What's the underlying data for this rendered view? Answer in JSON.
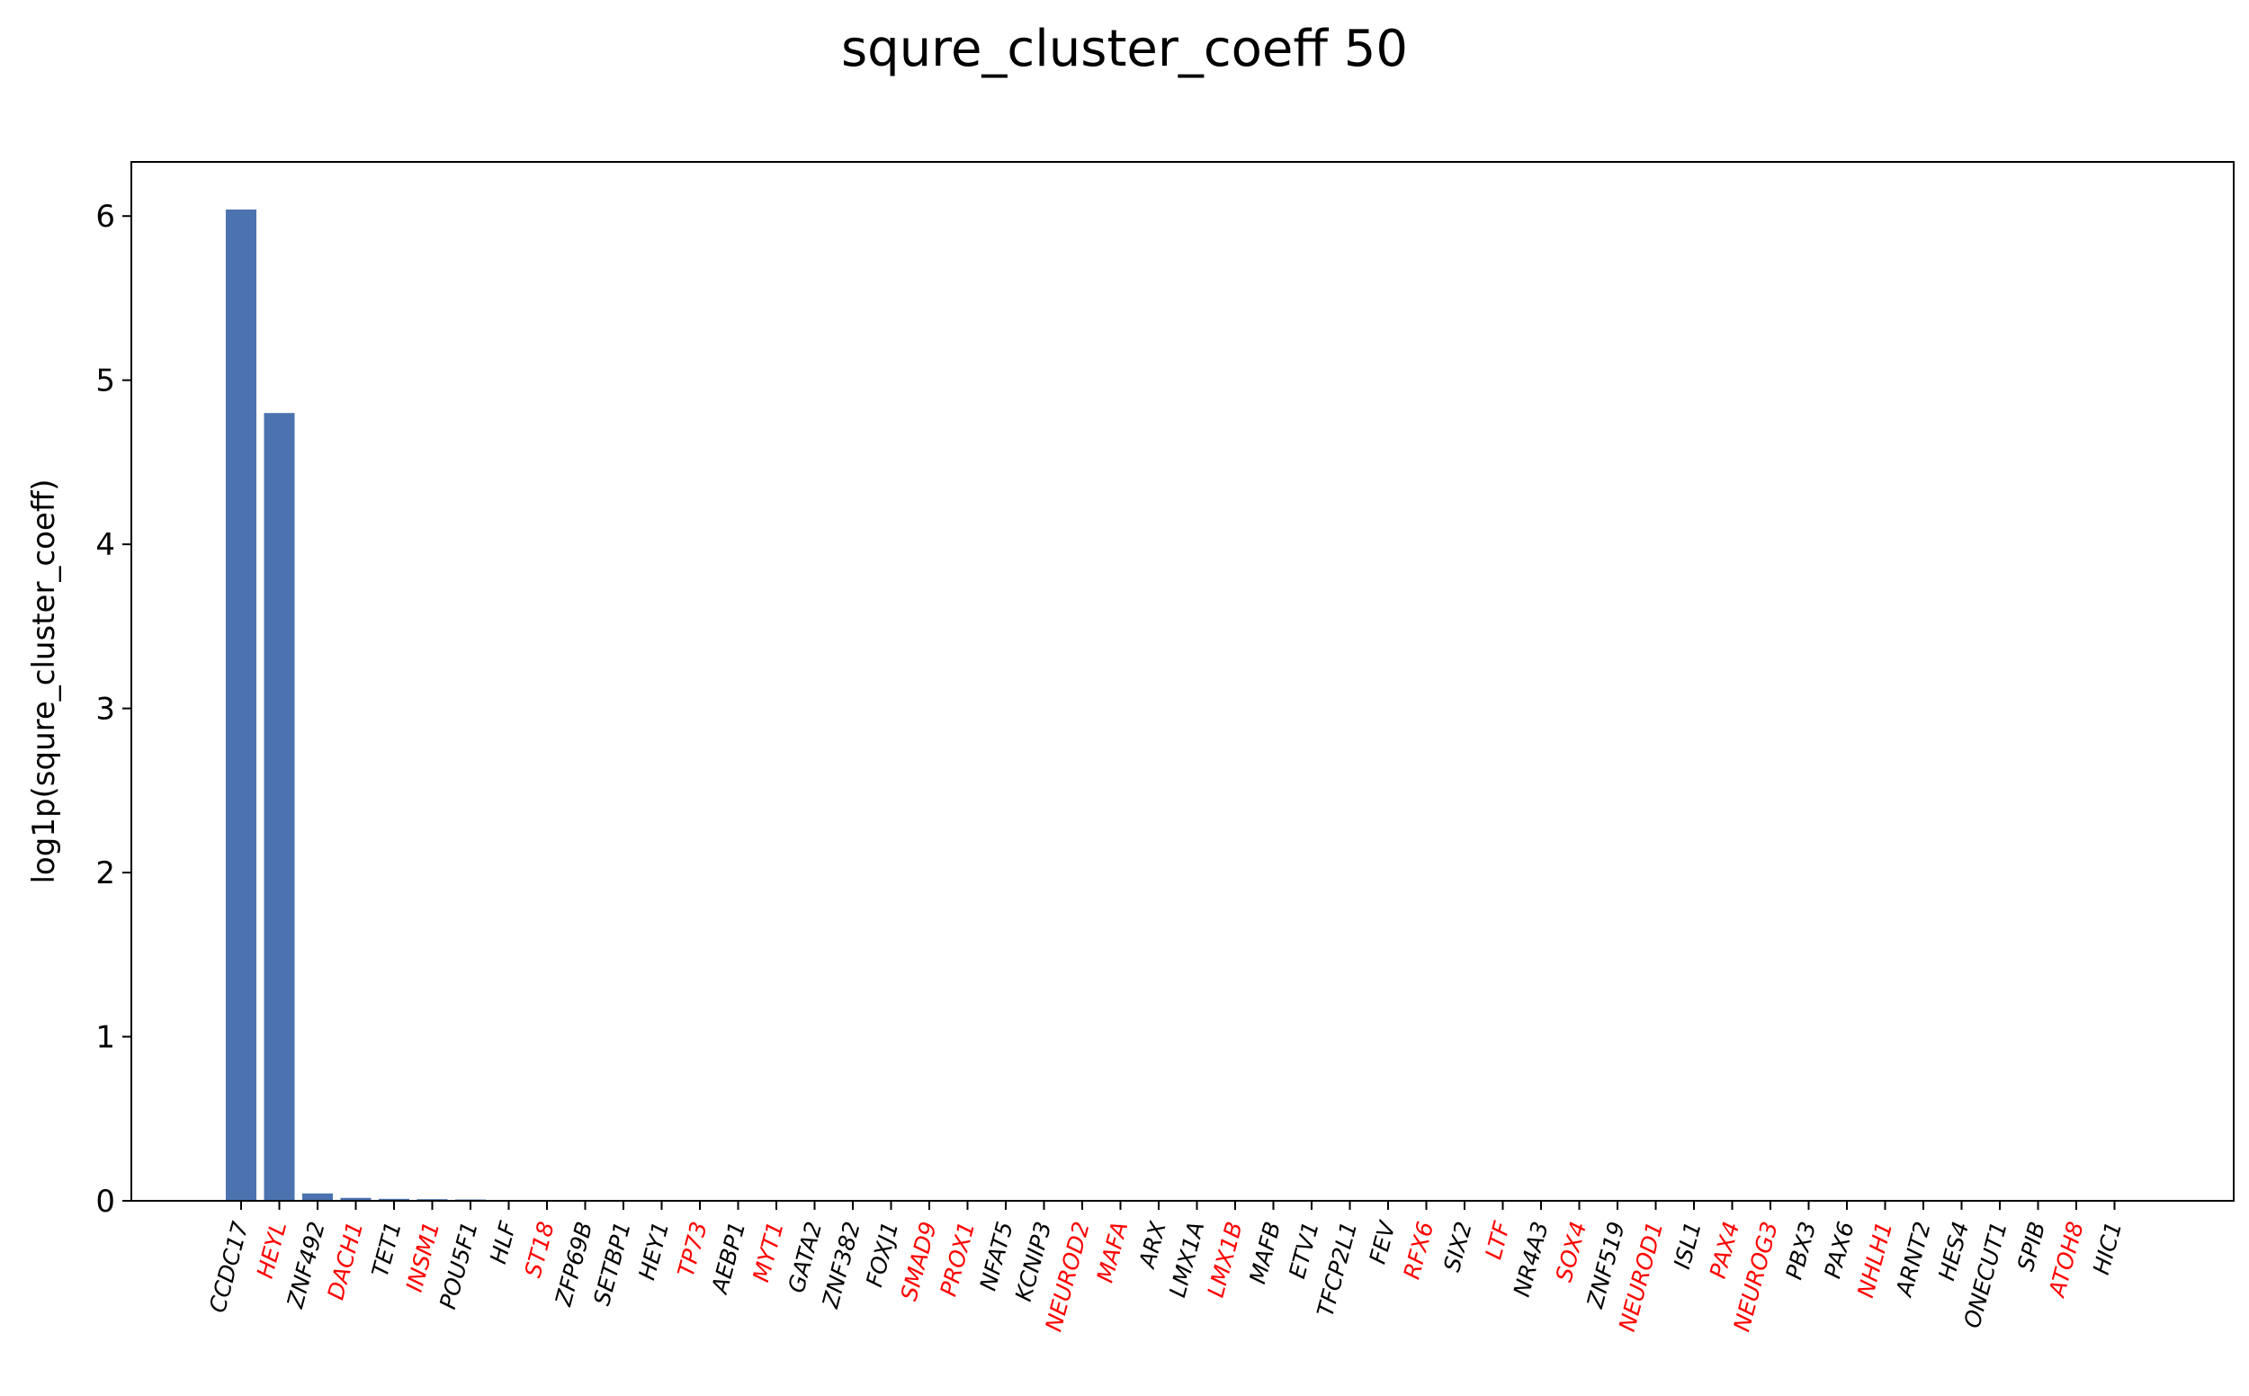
{
  "chart_data": {
    "type": "bar",
    "title": "squre_cluster_coeff 50",
    "xlabel": "",
    "ylabel": "log1p(squre_cluster_coeff)",
    "ylim": [
      0,
      6.33
    ],
    "yticks": [
      "0",
      "1",
      "2",
      "3",
      "4",
      "5",
      "6"
    ],
    "grid": false,
    "bar_color": "#4c72b0",
    "highlight_label_color": "#ff0000",
    "default_label_color": "#000000",
    "categories": [
      "CCDC17",
      "HEYL",
      "ZNF492",
      "DACH1",
      "TET1",
      "INSM1",
      "POU5F1",
      "HLF",
      "ST18",
      "ZFP69B",
      "SETBP1",
      "HEY1",
      "TP73",
      "AEBP1",
      "MYT1",
      "GATA2",
      "ZNF382",
      "FOXJ1",
      "SMAD9",
      "PROX1",
      "NFAT5",
      "KCNIP3",
      "NEUROD2",
      "MAFA",
      "ARX",
      "LMX1A",
      "LMX1B",
      "MAFB",
      "ETV1",
      "TFCP2L1",
      "FEV",
      "RFX6",
      "SIX2",
      "LTF",
      "NR4A3",
      "SOX4",
      "ZNF519",
      "NEUROD1",
      "ISL1",
      "PAX4",
      "NEUROG3",
      "PBX3",
      "PAX6",
      "NHLH1",
      "ARNT2",
      "HES4",
      "ONECUT1",
      "SPIB",
      "ATOH8",
      "HIC1"
    ],
    "highlighted": [
      "HEYL",
      "DACH1",
      "INSM1",
      "ST18",
      "TP73",
      "MYT1",
      "SMAD9",
      "PROX1",
      "NEUROD2",
      "MAFA",
      "LMX1B",
      "RFX6",
      "LTF",
      "SOX4",
      "NEUROD1",
      "PAX4",
      "NEUROG3",
      "NHLH1",
      "ATOH8"
    ],
    "values": [
      6.04,
      4.8,
      0.045,
      0.018,
      0.012,
      0.01,
      0.008,
      0.005,
      0.004,
      0.004,
      0.003,
      0.003,
      0.002,
      0.002,
      0.002,
      0.002,
      0.001,
      0.001,
      0.001,
      0.001,
      0.001,
      0.001,
      0.001,
      0.001,
      0.001,
      0.001,
      0.001,
      0.001,
      0.001,
      0.001,
      0.001,
      0.001,
      0.001,
      0.001,
      0.001,
      0.001,
      0.001,
      0.001,
      0.001,
      0.001,
      0.001,
      0.001,
      0.001,
      0.001,
      0.001,
      0.001,
      0.001,
      0.001,
      0.001,
      0.001
    ]
  }
}
